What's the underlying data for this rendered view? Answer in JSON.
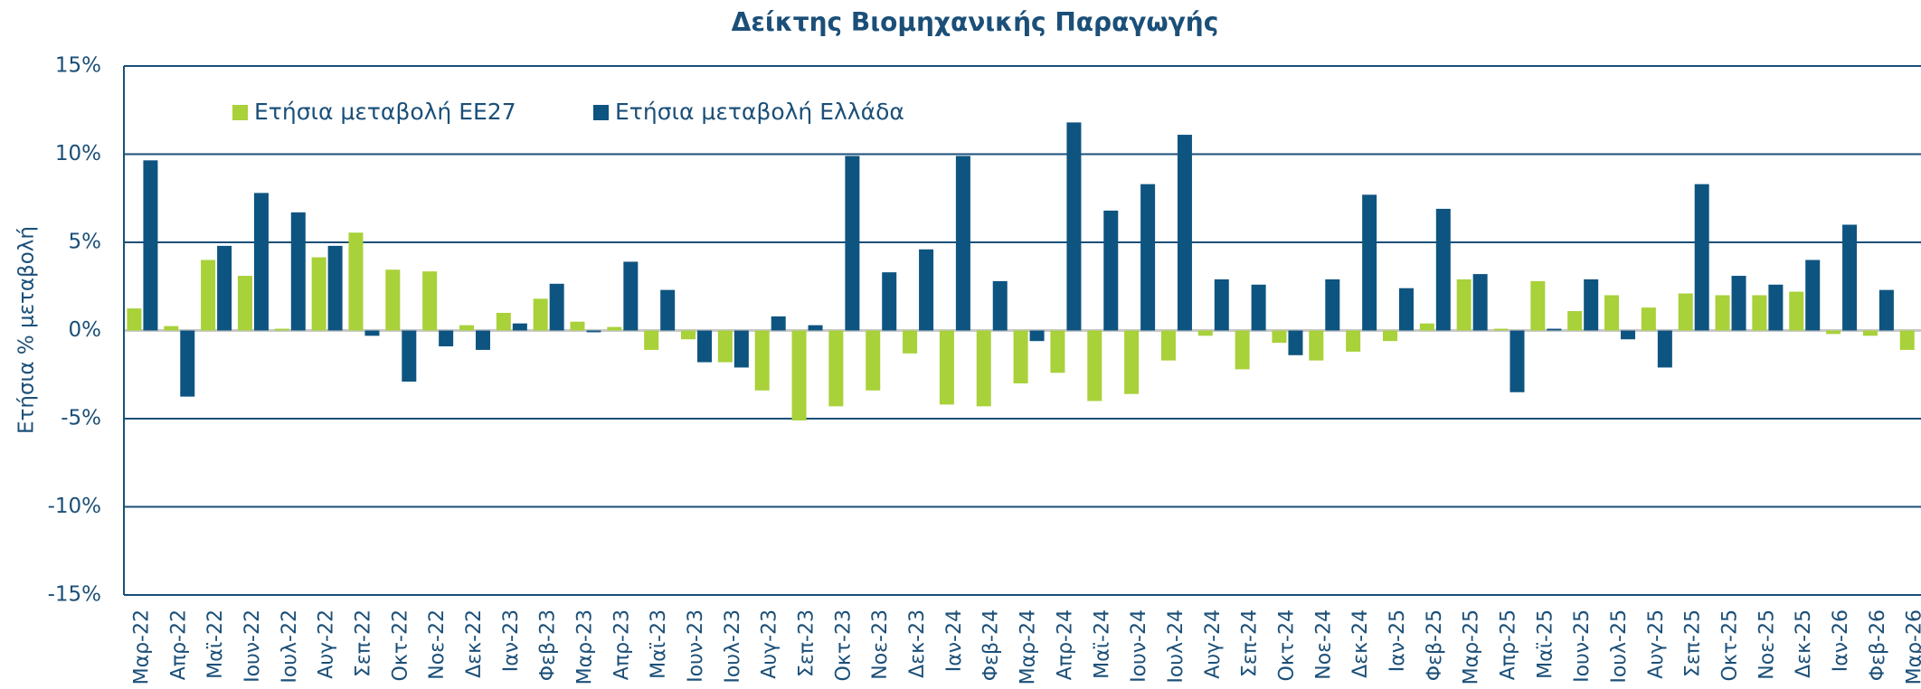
{
  "chart_data": {
    "type": "bar",
    "title": "Δείκτης Βιομηχανικής Παραγωγής",
    "y_label": "Ετήσια % μεταβολή",
    "categories": [
      "Μαρ-22",
      "Απρ-22",
      "Μαϊ-22",
      "Ιουν-22",
      "Ιουλ-22",
      "Αυγ-22",
      "Σεπ-22",
      "Οκτ-22",
      "Νοε-22",
      "Δεκ-22",
      "Ιαν-23",
      "Φεβ-23",
      "Μαρ-23",
      "Απρ-23",
      "Μαϊ-23",
      "Ιουν-23",
      "Ιουλ-23",
      "Αυγ-23",
      "Σεπ-23",
      "Οκτ-23",
      "Νοε-23",
      "Δεκ-23",
      "Ιαν-24",
      "Φεβ-24",
      "Μαρ-24",
      "Απρ-24",
      "Μαϊ-24",
      "Ιουν-24",
      "Ιουλ-24",
      "Αυγ-24",
      "Σεπ-24",
      "Οκτ-24",
      "Νοε-24",
      "Δεκ-24",
      "Ιαν-25",
      "Φεβ-25",
      "Μαρ-25",
      "Απρ-25",
      "Μαϊ-25",
      "Ιουν-25",
      "Ιουλ-25",
      "Αυγ-25",
      "Σεπ-25",
      "Οκτ-25",
      "Νοε-25",
      "Δεκ-25",
      "Ιαν-26",
      "Φεβ-26",
      "Μαρ-26"
    ],
    "series": [
      {
        "name": "Ετήσια μεταβολή ΕΕ27",
        "color": "#a8d13a",
        "values": [
          1.25,
          0.25,
          4.0,
          3.1,
          0.1,
          4.15,
          5.55,
          3.45,
          3.35,
          0.3,
          1.0,
          1.8,
          0.5,
          0.2,
          -1.1,
          -0.5,
          -1.8,
          -3.4,
          -5.1,
          -4.3,
          -3.4,
          -1.3,
          -4.2,
          -4.3,
          -3.0,
          -2.4,
          -4.0,
          -3.6,
          -1.7,
          -0.3,
          -2.2,
          -0.7,
          -1.7,
          -1.2,
          -0.6,
          0.4,
          2.9,
          0.1,
          2.8,
          1.1,
          2.0,
          1.3,
          2.1,
          2.0,
          2.0,
          2.2,
          -0.2,
          -0.3,
          -1.1
        ]
      },
      {
        "name": "Ετήσια μεταβολή Ελλάδα",
        "color": "#0e5480",
        "values": [
          9.65,
          -3.75,
          4.8,
          7.8,
          6.7,
          4.8,
          -0.3,
          -2.9,
          -0.9,
          -1.1,
          0.4,
          2.65,
          -0.1,
          3.9,
          2.3,
          -1.8,
          -2.1,
          0.8,
          0.3,
          9.9,
          3.3,
          4.6,
          9.9,
          2.8,
          -0.6,
          11.8,
          6.8,
          8.3,
          11.1,
          2.9,
          2.6,
          -1.4,
          2.9,
          7.7,
          2.4,
          6.9,
          3.2,
          -3.5,
          0.1,
          2.9,
          -0.5,
          -2.1,
          8.3,
          3.1,
          2.6,
          4.0,
          6.0,
          2.3,
          null
        ]
      }
    ],
    "ylim": [
      -15,
      15
    ],
    "yticks": [
      {
        "value": -15,
        "label": "-15%"
      },
      {
        "value": -10,
        "label": "-10%"
      },
      {
        "value": -5,
        "label": "-5%"
      },
      {
        "value": 0,
        "label": "0%"
      },
      {
        "value": 5,
        "label": "5%"
      },
      {
        "value": 10,
        "label": "10%"
      },
      {
        "value": 15,
        "label": "15%"
      }
    ],
    "grid": true
  }
}
